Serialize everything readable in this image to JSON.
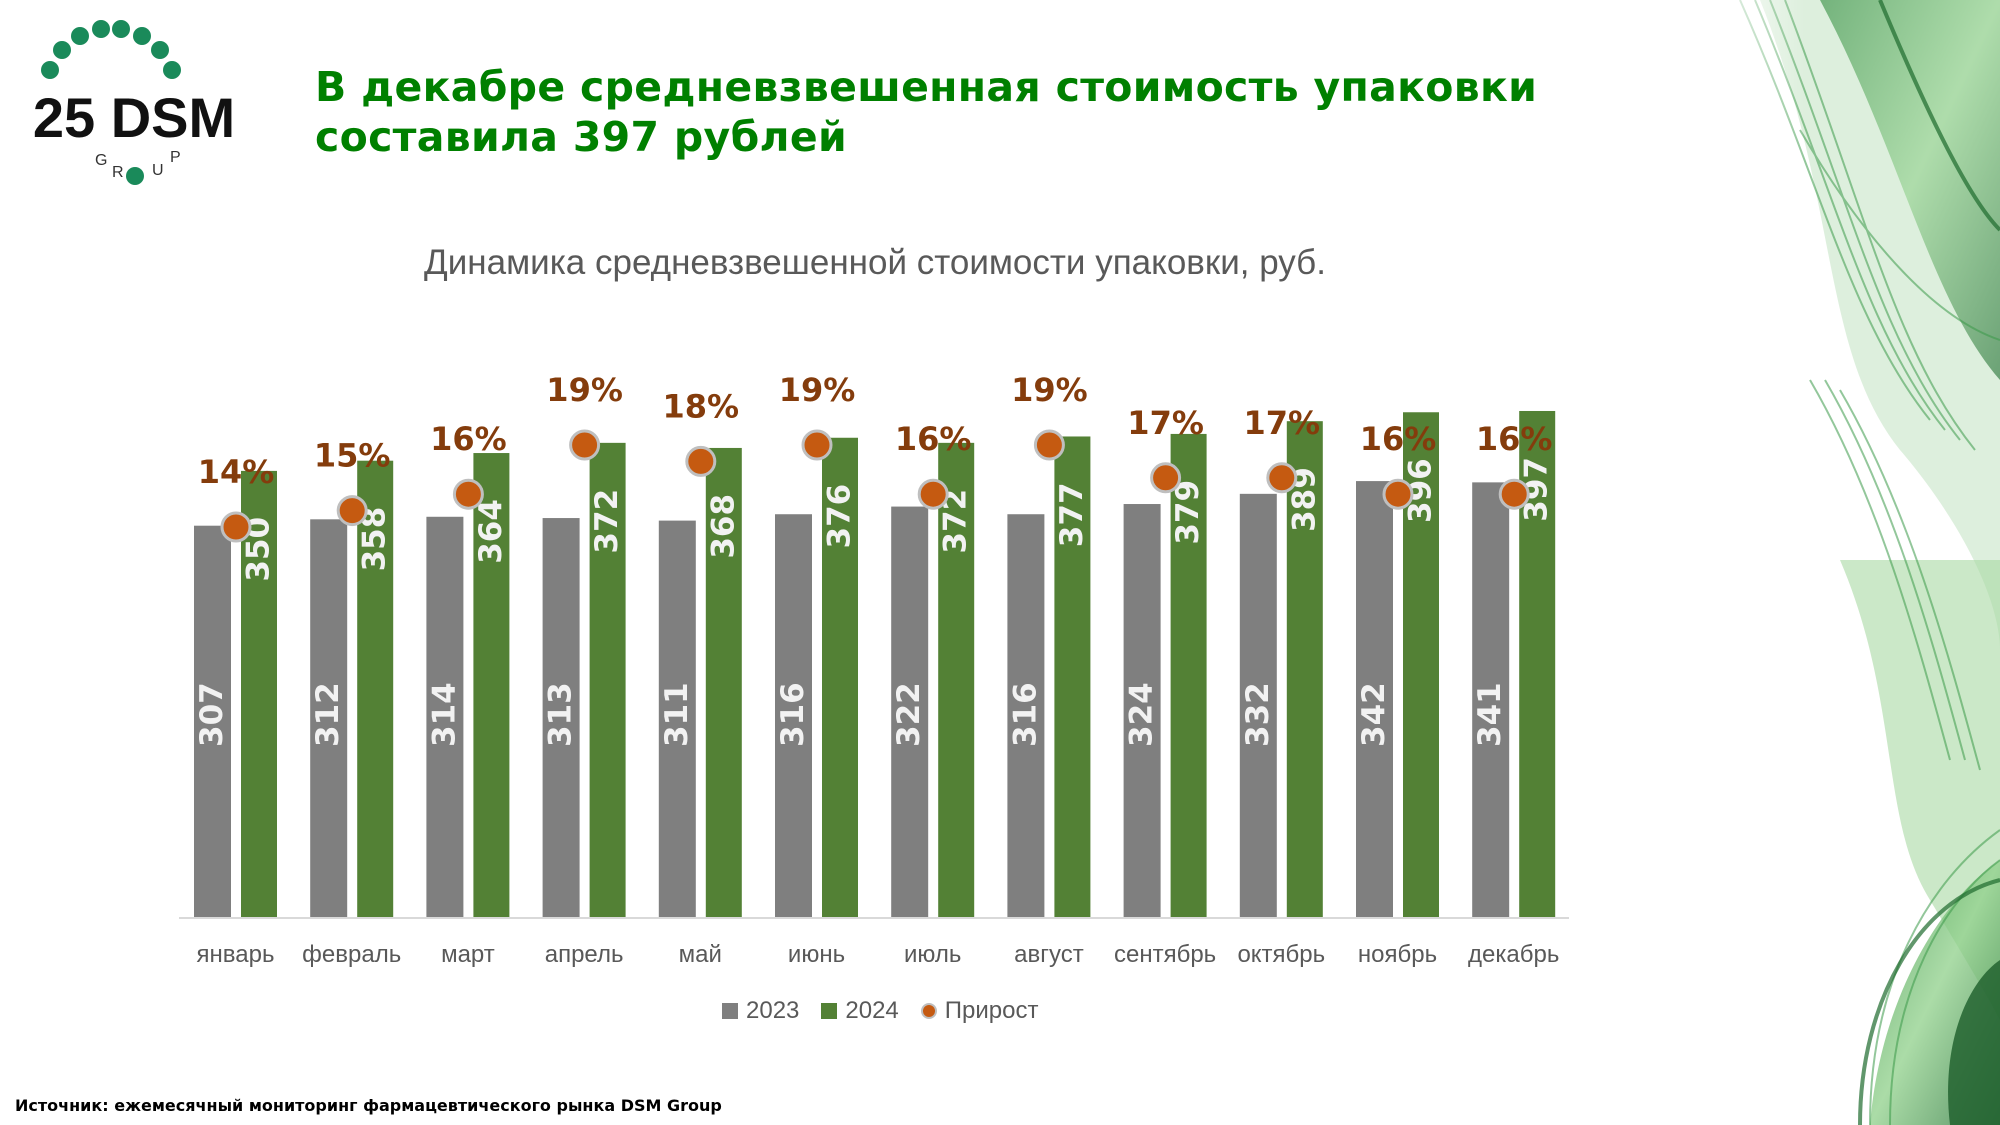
{
  "logo": {
    "text": "25 DSM",
    "subtext": "GROUP"
  },
  "headline": {
    "line1": "В декабре средневзвешенная стоимость упаковки",
    "line2": "составила 397 рублей"
  },
  "colors": {
    "headline": "#008000",
    "series_2023": "#7f7f7f",
    "series_2024": "#538135",
    "growth_dot": "#c55a11",
    "growth_label": "#843c0c"
  },
  "chart_data": {
    "type": "bar",
    "title": "Динамика средневзвешенной стоимости упаковки, руб.",
    "xlabel": "",
    "ylabel": "",
    "ylim": [
      0,
      400
    ],
    "grid": false,
    "legend_position": "bottom",
    "categories": [
      "январь",
      "февраль",
      "март",
      "апрель",
      "май",
      "июнь",
      "июль",
      "август",
      "сентябрь",
      "октябрь",
      "ноябрь",
      "декабрь"
    ],
    "series": [
      {
        "name": "2023",
        "type": "bar",
        "values": [
          307,
          312,
          314,
          313,
          311,
          316,
          322,
          316,
          324,
          332,
          342,
          341
        ]
      },
      {
        "name": "2024",
        "type": "bar",
        "values": [
          350,
          358,
          364,
          372,
          368,
          376,
          372,
          377,
          379,
          389,
          396,
          397
        ]
      },
      {
        "name": "Прирост",
        "type": "scatter",
        "unit": "%",
        "values": [
          14,
          15,
          16,
          19,
          18,
          19,
          16,
          19,
          17,
          17,
          16,
          16
        ]
      }
    ]
  },
  "legend": [
    "2023",
    "2024",
    "Прирост"
  ],
  "footer": {
    "source": "Источник: ежемесячный мониторинг фармацевтического рынка DSM Group"
  }
}
